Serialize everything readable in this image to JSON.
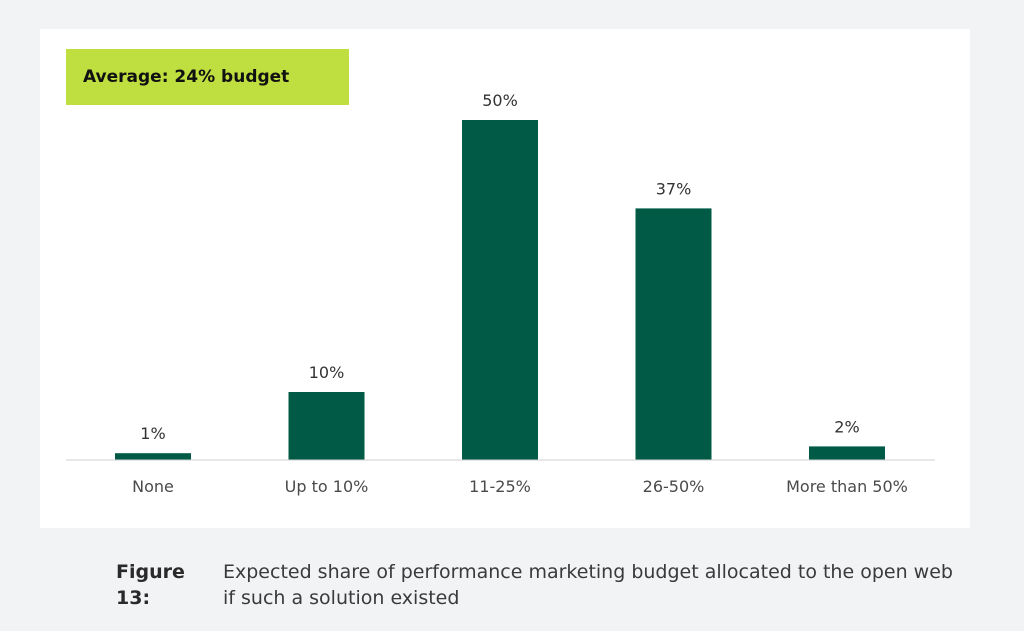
{
  "badge": {
    "text": "Average: 24% budget",
    "color": "#bfde40"
  },
  "caption": {
    "label": "Figure 13:",
    "text": "Expected share of performance marketing budget allocated to the open web if such a solution existed"
  },
  "colors": {
    "bar": "#005a46",
    "baseline": "#d0d0d0",
    "card_background": "#ffffff",
    "page_background": "#f2f3f5"
  },
  "chart_data": {
    "type": "bar",
    "categories": [
      "None",
      "Up to 10%",
      "11-25%",
      "26-50%",
      "More than 50%"
    ],
    "values": [
      1,
      10,
      50,
      37,
      2
    ],
    "value_labels": [
      "1%",
      "10%",
      "50%",
      "37%",
      "2%"
    ],
    "ylim": [
      0,
      50
    ],
    "grid": false,
    "legend": "none"
  }
}
